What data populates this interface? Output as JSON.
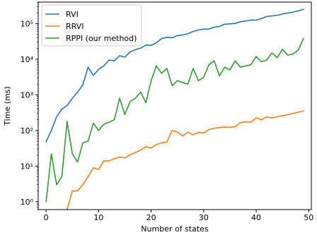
{
  "chart_data": {
    "type": "line",
    "title": "",
    "xlabel": "Number of states",
    "ylabel": "Time (ms)",
    "yscale": "log",
    "xlim": [
      -1.5,
      50.5
    ],
    "ylim": [
      0.6,
      400000
    ],
    "xticks": [
      0,
      10,
      20,
      30,
      40,
      50
    ],
    "xtick_labels": [
      "0",
      "10",
      "20",
      "30",
      "40",
      "50"
    ],
    "yticks": [
      1,
      10,
      100,
      1000,
      10000,
      100000
    ],
    "ytick_labels": [
      "10⁰",
      "10¹",
      "10²",
      "10³",
      "10⁴",
      "10⁵"
    ],
    "grid": false,
    "legend_position": "top-left",
    "x": [
      0,
      1,
      2,
      3,
      4,
      5,
      6,
      7,
      8,
      9,
      10,
      11,
      12,
      13,
      14,
      15,
      16,
      17,
      18,
      19,
      20,
      21,
      22,
      23,
      24,
      25,
      26,
      27,
      28,
      29,
      30,
      31,
      32,
      33,
      34,
      35,
      36,
      37,
      38,
      39,
      40,
      41,
      42,
      43,
      44,
      45,
      46,
      47,
      48,
      49
    ],
    "series": [
      {
        "name": "RVI",
        "color": "#1f77b4",
        "values": [
          48,
          100,
          240,
          400,
          500,
          800,
          1200,
          1900,
          6000,
          3500,
          5200,
          6500,
          9500,
          9000,
          12500,
          11500,
          16000,
          18500,
          20500,
          25000,
          24500,
          29000,
          38000,
          41000,
          40000,
          46000,
          48000,
          52000,
          60000,
          66000,
          70000,
          70000,
          79000,
          83000,
          96000,
          98000,
          101000,
          112000,
          118000,
          126000,
          125000,
          138000,
          158000,
          164000,
          171000,
          184000,
          198000,
          210000,
          226000,
          252000
        ]
      },
      {
        "name": "RRVI",
        "color": "#ff7f0e",
        "values": [
          null,
          null,
          null,
          null,
          0.2,
          2,
          2,
          3,
          5,
          9,
          8,
          14,
          14,
          16,
          18,
          17,
          21,
          24,
          28,
          35,
          32,
          40,
          45,
          47,
          100,
          90,
          70,
          90,
          75,
          88,
          85,
          105,
          115,
          120,
          125,
          122,
          128,
          165,
          175,
          170,
          225,
          200,
          240,
          225,
          240,
          260,
          275,
          300,
          325,
          350
        ]
      },
      {
        "name": "RPPI (our method)",
        "color": "#2ca02c",
        "values": [
          1,
          22,
          3,
          5,
          180,
          22,
          13,
          45,
          50,
          160,
          100,
          150,
          170,
          200,
          800,
          280,
          650,
          800,
          1200,
          600,
          2500,
          6500,
          4000,
          5500,
          1800,
          2500,
          2200,
          2000,
          5500,
          2500,
          3100,
          7000,
          9000,
          3400,
          6000,
          5000,
          9000,
          6000,
          6500,
          7000,
          12000,
          8500,
          9500,
          15000,
          11000,
          19000,
          13000,
          14000,
          18000,
          38000
        ]
      }
    ]
  }
}
